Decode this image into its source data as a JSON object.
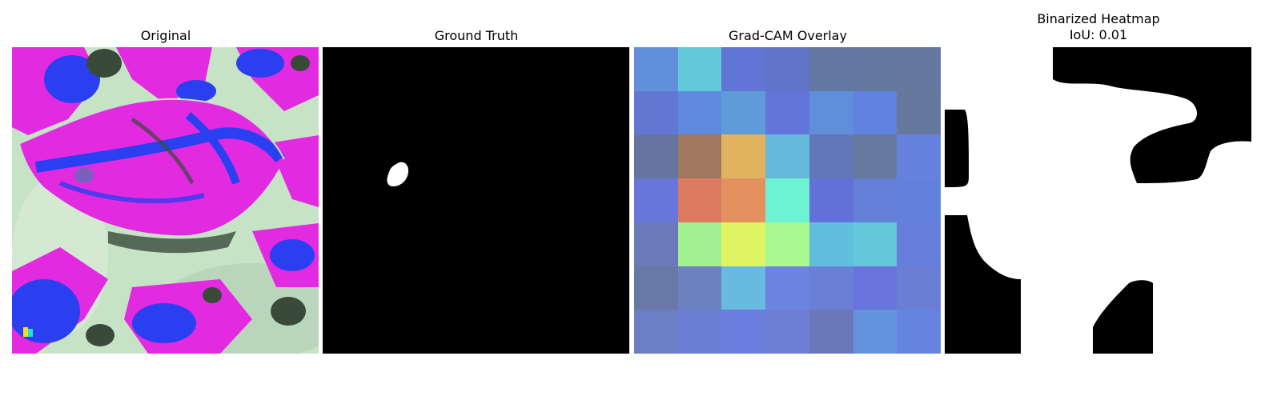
{
  "panels": [
    {
      "title": "Original"
    },
    {
      "title": "Ground Truth"
    },
    {
      "title": "Grad-CAM Overlay"
    },
    {
      "title_line1": "Binarized Heatmap",
      "title_line2": "IoU: 0.01"
    }
  ],
  "gradcam_colors": [
    [
      "#618fdb",
      "#61c9d9",
      "#6075d6",
      "#6274c9",
      "#6377a3",
      "#63789e",
      "#66789f"
    ],
    [
      "#6277d2",
      "#5f89dd",
      "#5f9bd8",
      "#6176d8",
      "#5f8fdb",
      "#6083e0",
      "#67789f"
    ],
    [
      "#66759f",
      "#a0775f",
      "#e2b35f",
      "#64b9dd",
      "#6377b8",
      "#67799f",
      "#6583dc"
    ],
    [
      "#6677d9",
      "#dc7b60",
      "#e3925f",
      "#6df2d3",
      "#6171d9",
      "#6580d9",
      "#6281dc"
    ],
    [
      "#6a7abb",
      "#a1f091",
      "#dff462",
      "#a8f991",
      "#61bfdd",
      "#64c7db",
      "#647ed9"
    ],
    [
      "#6878a7",
      "#6d81c0",
      "#67bbe0",
      "#6b84e0",
      "#6a80d6",
      "#6874dc",
      "#6a7ed4"
    ],
    [
      "#6c7ec4",
      "#6a7ed4",
      "#6a7ee0",
      "#6e7ed4",
      "#6a78b9",
      "#6592dd",
      "#6783e0"
    ]
  ]
}
